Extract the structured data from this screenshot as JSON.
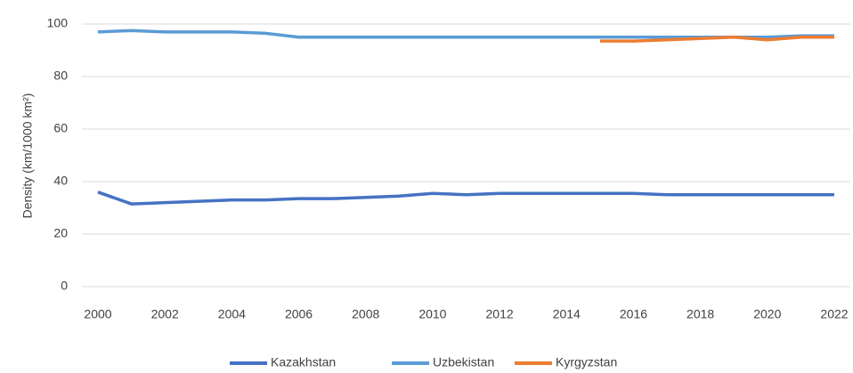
{
  "chart_data": {
    "type": "line",
    "y_label": "Density (km/1000 km²)",
    "x": [
      2000,
      2001,
      2002,
      2003,
      2004,
      2005,
      2006,
      2007,
      2008,
      2009,
      2010,
      2011,
      2012,
      2013,
      2014,
      2015,
      2016,
      2017,
      2018,
      2019,
      2020,
      2021,
      2022
    ],
    "xlim": [
      2000,
      2022
    ],
    "xticks": [
      2000,
      2002,
      2004,
      2006,
      2008,
      2010,
      2012,
      2014,
      2016,
      2018,
      2020,
      2022
    ],
    "ylim": [
      0,
      100
    ],
    "yticks": [
      0,
      20,
      40,
      60,
      80,
      100
    ],
    "grid": true,
    "legend": "bottom",
    "series": [
      {
        "name": "Kazakhstan",
        "color": "#4472c4",
        "values": [
          36,
          31.5,
          32,
          32.5,
          33,
          33,
          33.5,
          33.5,
          34,
          34.5,
          35.5,
          35,
          35.5,
          35.5,
          35.5,
          35.5,
          35.5,
          35,
          35,
          35,
          35,
          35,
          35
        ]
      },
      {
        "name": "Uzbekistan",
        "color": "#5b9bd5",
        "values": [
          97,
          97.5,
          97,
          97,
          97,
          96.5,
          95,
          95,
          95,
          95,
          95,
          95,
          95,
          95,
          95,
          95,
          95,
          95,
          95,
          95,
          95,
          95.5,
          95.5
        ]
      },
      {
        "name": "Kyrgyzstan",
        "color": "#ed7d31",
        "values": [
          null,
          null,
          null,
          null,
          null,
          null,
          null,
          null,
          null,
          null,
          null,
          null,
          null,
          null,
          null,
          93.5,
          93.5,
          94,
          94.5,
          95,
          94,
          95,
          95
        ]
      }
    ]
  }
}
